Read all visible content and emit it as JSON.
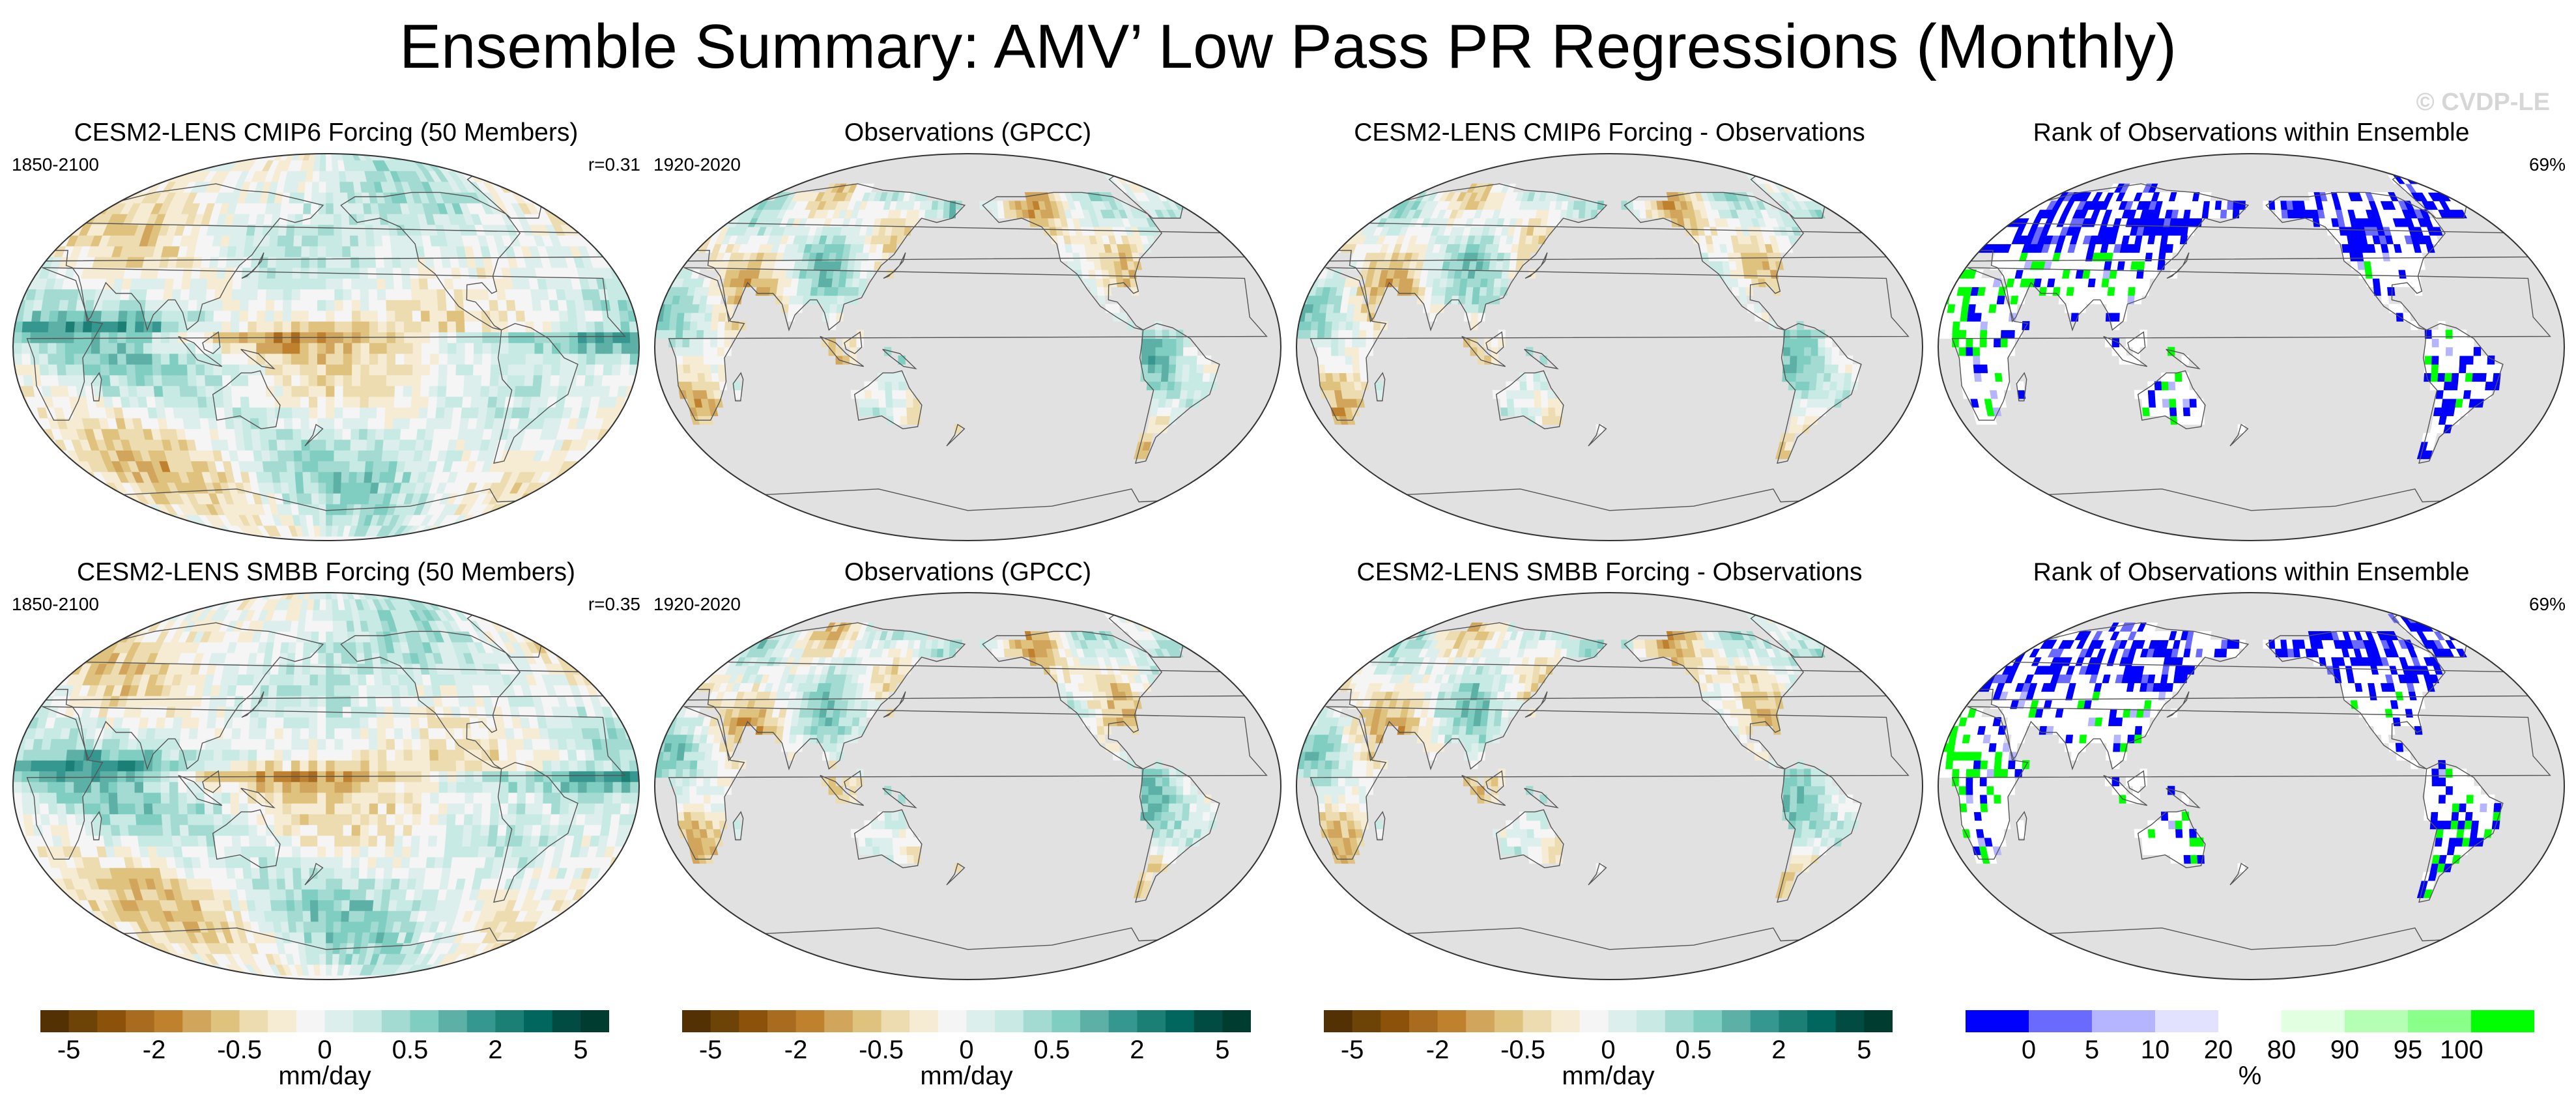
{
  "title": "Ensemble Summary: AMV’ Low Pass PR Regressions (Monthly)",
  "watermark": "© CVDP-LE",
  "rows": [
    {
      "panels": [
        {
          "title": "CESM2-LENS CMIP6 Forcing (50 Members)",
          "left_label": "1850-2100",
          "right_label": "r=0.31",
          "kind": "model"
        },
        {
          "title": "Observations (GPCC)",
          "left_label": "1920-2020",
          "right_label": "",
          "kind": "obs"
        },
        {
          "title": "CESM2-LENS CMIP6 Forcing - Observations",
          "left_label": "",
          "right_label": "",
          "kind": "diff"
        },
        {
          "title": "Rank of Observations within Ensemble",
          "left_label": "",
          "right_label": "69%",
          "kind": "rank"
        }
      ]
    },
    {
      "panels": [
        {
          "title": "CESM2-LENS SMBB Forcing (50 Members)",
          "left_label": "1850-2100",
          "right_label": "r=0.35",
          "kind": "model"
        },
        {
          "title": "Observations (GPCC)",
          "left_label": "1920-2020",
          "right_label": "",
          "kind": "obs"
        },
        {
          "title": "CESM2-LENS SMBB Forcing - Observations",
          "left_label": "",
          "right_label": "",
          "kind": "diff"
        },
        {
          "title": "Rank of Observations within Ensemble",
          "left_label": "",
          "right_label": "69%",
          "kind": "rank"
        }
      ]
    }
  ],
  "colors": {
    "brbg": [
      "#543005",
      "#6e4308",
      "#8c510a",
      "#a86b20",
      "#bf812d",
      "#d1a55c",
      "#dfc27d",
      "#ecdcb0",
      "#f6ecd4",
      "#f5f5f5",
      "#dcefec",
      "#c7eae5",
      "#a3dbd2",
      "#80cdc1",
      "#5cb0a5",
      "#35978f",
      "#1c7f76",
      "#01665e",
      "#014b43",
      "#003c30"
    ],
    "rank": [
      "#0000ff",
      "#6a6aff",
      "#b4b4ff",
      "#e2e2ff",
      "#ffffff",
      "#e2ffe2",
      "#b4ffb4",
      "#8aff8a",
      "#00ff00"
    ],
    "land_mask": "#e1e1e1",
    "coast": "#555555"
  },
  "chart_data": [
    {
      "type": "heatmap",
      "name": "precip-regression-colorbar",
      "units": "mm/day",
      "ticks": [
        "-5",
        "-2",
        "-0.5",
        "0",
        "0.5",
        "2",
        "5"
      ],
      "num_bins": 20
    },
    {
      "type": "heatmap",
      "name": "rank-colorbar",
      "units": "%",
      "ticks": [
        "0",
        "5",
        "10",
        "20",
        "80",
        "90",
        "95",
        "100"
      ],
      "num_bins": 9
    }
  ],
  "colorbars": [
    {
      "kind": "brbg",
      "ticks": [
        "-5",
        "-2",
        "-0.5",
        "0",
        "0.5",
        "2",
        "5"
      ],
      "unit": "mm/day"
    },
    {
      "kind": "brbg",
      "ticks": [
        "-5",
        "-2",
        "-0.5",
        "0",
        "0.5",
        "2",
        "5"
      ],
      "unit": "mm/day"
    },
    {
      "kind": "brbg",
      "ticks": [
        "-5",
        "-2",
        "-0.5",
        "0",
        "0.5",
        "2",
        "5"
      ],
      "unit": "mm/day"
    },
    {
      "kind": "rank",
      "ticks": [
        "0",
        "5",
        "10",
        "20",
        "80",
        "90",
        "95",
        "100"
      ],
      "unit": "%"
    }
  ]
}
